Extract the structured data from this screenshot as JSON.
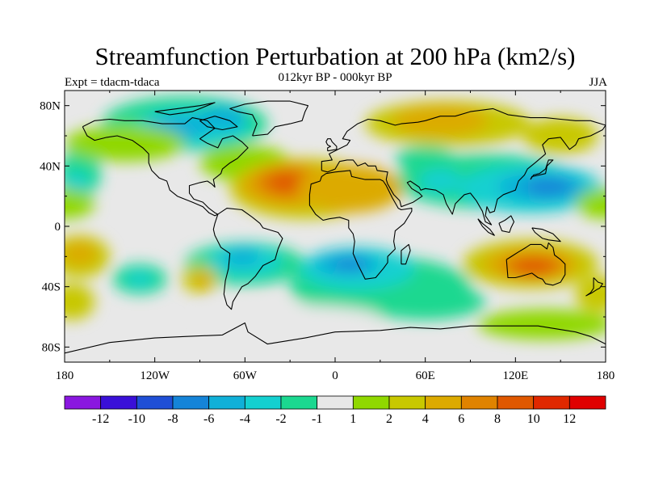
{
  "title": "Streamfunction Perturbation at 200 hPa (km2/s)",
  "subtitle": "012kyr BP - 000kyr BP",
  "left_label": "Expt = tdacm-tdaca",
  "right_label": "JJA",
  "lat_ticks": [
    {
      "lat": 80,
      "label": "80N"
    },
    {
      "lat": 40,
      "label": "40N"
    },
    {
      "lat": 0,
      "label": "0"
    },
    {
      "lat": -40,
      "label": "40S"
    },
    {
      "lat": -80,
      "label": "80S"
    }
  ],
  "lon_ticks": [
    {
      "lon": -180,
      "label": "180"
    },
    {
      "lon": -120,
      "label": "120W"
    },
    {
      "lon": -60,
      "label": "60W"
    },
    {
      "lon": 0,
      "label": "0"
    },
    {
      "lon": 60,
      "label": "60E"
    },
    {
      "lon": 120,
      "label": "120E"
    },
    {
      "lon": 180,
      "label": "180"
    }
  ],
  "colorbar": {
    "colors": [
      "#8a17e0",
      "#3a10d8",
      "#1f4fd6",
      "#1584d8",
      "#10b0d8",
      "#14d0d0",
      "#1bd890",
      "#e8e8e8",
      "#90d800",
      "#c8c800",
      "#dcaa00",
      "#e08300",
      "#e05800",
      "#e02800",
      "#e00000"
    ],
    "labels": [
      "-12",
      "-10",
      "-8",
      "-6",
      "-4",
      "-2",
      "-1",
      "1",
      "2",
      "4",
      "6",
      "8",
      "10",
      "12"
    ]
  },
  "chart_data": {
    "type": "heatmap",
    "title": "Streamfunction Perturbation at 200 hPa (km2/s)",
    "subtitle": "012kyr BP - 000kyr BP",
    "levels": [
      -12,
      -10,
      -8,
      -6,
      -4,
      -2,
      -1,
      1,
      2,
      4,
      6,
      8,
      10,
      12
    ],
    "xlim": [
      -180,
      180
    ],
    "ylim": [
      -90,
      90
    ],
    "features": [
      {
        "name": "north-atlantic-high",
        "lon": -30,
        "lat": 27,
        "value": 8
      },
      {
        "name": "north-africa-high",
        "lon": 10,
        "lat": 27,
        "value": 5
      },
      {
        "name": "eurasia-high",
        "lon": 75,
        "lat": 70,
        "value": 5
      },
      {
        "name": "canada-low",
        "lon": -100,
        "lat": 68,
        "value": -6
      },
      {
        "name": "east-asia-low",
        "lon": 140,
        "lat": 25,
        "value": -8
      },
      {
        "name": "arabia-low",
        "lon": 70,
        "lat": 30,
        "value": -4
      },
      {
        "name": "south-atlantic-low",
        "lon": 15,
        "lat": -25,
        "value": -8
      },
      {
        "name": "south-america-low",
        "lon": -60,
        "lat": -20,
        "value": -6
      },
      {
        "name": "east-pacific-low",
        "lon": -130,
        "lat": -35,
        "value": -4
      },
      {
        "name": "australia-high",
        "lon": 130,
        "lat": -25,
        "value": 8
      },
      {
        "name": "south-pacific-high",
        "lon": -170,
        "lat": -20,
        "value": 5
      },
      {
        "name": "southeast-pacific-high",
        "lon": -90,
        "lat": -35,
        "value": 4
      },
      {
        "name": "southern-ocean-ring",
        "lon": 60,
        "lat": -60,
        "value": -2
      }
    ]
  }
}
